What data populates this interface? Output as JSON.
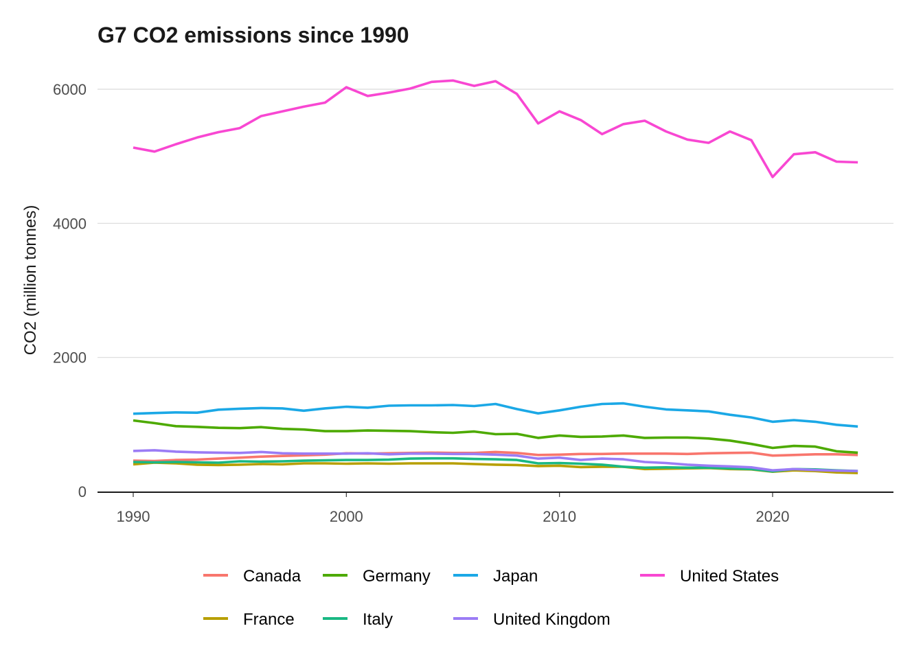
{
  "chart_data": {
    "type": "line",
    "title": "G7 CO2 emissions since 1990",
    "xlabel": "",
    "ylabel": "CO2 (million tonnes)",
    "xlim": [
      1988.4,
      2025.5
    ],
    "ylim": [
      0,
      6400
    ],
    "x_ticks": [
      1990,
      2000,
      2010,
      2020
    ],
    "x_tick_labels": [
      "1990",
      "2000",
      "2010",
      "2020"
    ],
    "y_ticks": [
      0,
      2000,
      4000,
      6000
    ],
    "y_tick_labels": [
      "0",
      "2000",
      "4000",
      "6000"
    ],
    "grid": "horizontal-major",
    "legend_position": "bottom",
    "x": [
      1990,
      1991,
      1992,
      1993,
      1994,
      1995,
      1996,
      1997,
      1998,
      1999,
      2000,
      2001,
      2002,
      2003,
      2004,
      2005,
      2006,
      2007,
      2008,
      2009,
      2010,
      2011,
      2012,
      2013,
      2014,
      2015,
      2016,
      2017,
      2018,
      2019,
      2020,
      2021,
      2022,
      2023,
      2024
    ],
    "series": [
      {
        "name": "Canada",
        "color": "#F8766D",
        "values": [
          460,
          455,
          470,
          475,
          490,
          505,
          520,
          530,
          540,
          550,
          570,
          565,
          570,
          575,
          580,
          575,
          575,
          590,
          575,
          545,
          550,
          560,
          560,
          565,
          565,
          565,
          560,
          570,
          575,
          580,
          535,
          545,
          555,
          555,
          545
        ]
      },
      {
        "name": "France",
        "color": "#B79F00",
        "values": [
          405,
          430,
          420,
          400,
          395,
          400,
          410,
          405,
          420,
          420,
          415,
          420,
          415,
          420,
          420,
          420,
          410,
          400,
          395,
          380,
          385,
          365,
          370,
          370,
          335,
          340,
          345,
          350,
          335,
          330,
          295,
          315,
          305,
          285,
          275
        ]
      },
      {
        "name": "Germany",
        "color": "#4DAA00",
        "values": [
          1060,
          1020,
          975,
          965,
          950,
          945,
          960,
          935,
          925,
          900,
          900,
          910,
          905,
          900,
          885,
          875,
          895,
          855,
          860,
          800,
          835,
          815,
          820,
          835,
          800,
          805,
          805,
          790,
          760,
          710,
          650,
          680,
          670,
          600,
          580
        ]
      },
      {
        "name": "Italy",
        "color": "#19B883",
        "values": [
          440,
          435,
          440,
          435,
          430,
          450,
          445,
          450,
          460,
          465,
          470,
          470,
          475,
          490,
          495,
          495,
          485,
          480,
          470,
          420,
          425,
          415,
          400,
          370,
          355,
          360,
          355,
          355,
          345,
          335,
          300,
          335,
          330,
          315,
          305
        ]
      },
      {
        "name": "Japan",
        "color": "#1BA8E6",
        "values": [
          1160,
          1170,
          1180,
          1175,
          1220,
          1235,
          1245,
          1240,
          1205,
          1240,
          1265,
          1250,
          1280,
          1285,
          1285,
          1290,
          1275,
          1305,
          1230,
          1165,
          1210,
          1265,
          1305,
          1315,
          1265,
          1225,
          1210,
          1195,
          1145,
          1105,
          1040,
          1065,
          1040,
          995,
          970
        ]
      },
      {
        "name": "United Kingdom",
        "color": "#9B7CF5",
        "values": [
          605,
          615,
          595,
          585,
          580,
          575,
          590,
          570,
          565,
          565,
          565,
          570,
          555,
          565,
          565,
          560,
          560,
          550,
          535,
          490,
          505,
          470,
          490,
          480,
          440,
          425,
          400,
          385,
          375,
          360,
          315,
          335,
          320,
          310,
          305
        ]
      },
      {
        "name": "United States",
        "color": "#F847D2",
        "values": [
          5130,
          5070,
          5180,
          5280,
          5360,
          5420,
          5600,
          5670,
          5740,
          5800,
          6030,
          5900,
          5950,
          6010,
          6110,
          6130,
          6050,
          6120,
          5930,
          5490,
          5670,
          5540,
          5330,
          5480,
          5530,
          5370,
          5250,
          5200,
          5370,
          5240,
          4690,
          5030,
          5060,
          4920,
          4910
        ]
      }
    ],
    "legend_order": [
      "Canada",
      "Germany",
      "Japan",
      "United States",
      "France",
      "Italy",
      "United Kingdom"
    ]
  }
}
